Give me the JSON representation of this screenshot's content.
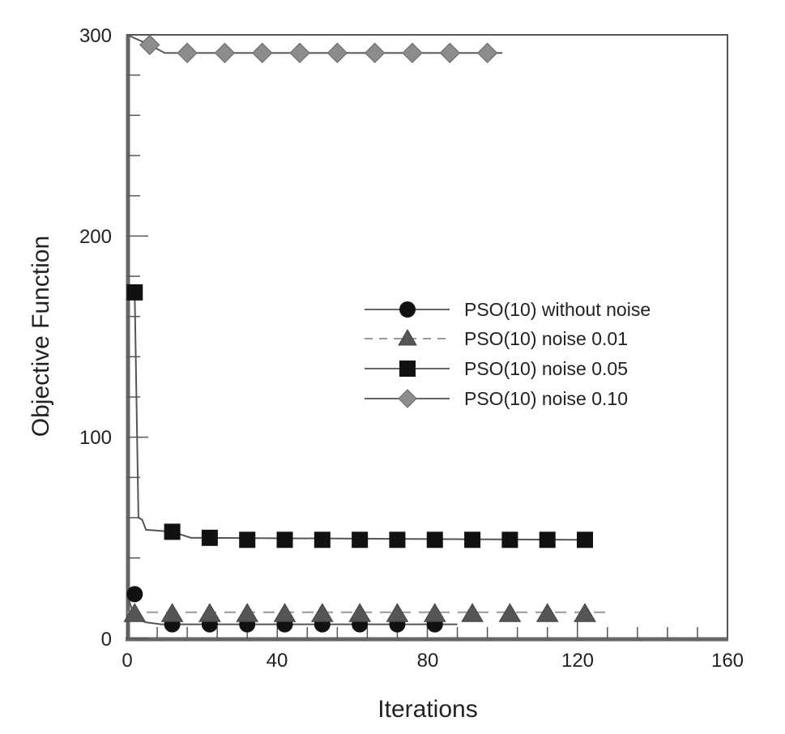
{
  "chart_data": {
    "type": "line",
    "title": "",
    "xlabel": "Iterations",
    "ylabel": "Objective Function",
    "xlim": [
      0,
      160
    ],
    "ylim": [
      0,
      300
    ],
    "xticks": [
      0,
      40,
      80,
      120,
      160
    ],
    "yticks": [
      0,
      100,
      200,
      300
    ],
    "x_minor_step": 8,
    "y_minor_step": 20,
    "grid": false,
    "legend_position": "center-right",
    "series": [
      {
        "name": "PSO(10) without noise",
        "marker": "circle",
        "line": "solid",
        "marker_color": "#111111",
        "points": [
          [
            2,
            22
          ],
          [
            12,
            7
          ],
          [
            22,
            7
          ],
          [
            32,
            7
          ],
          [
            42,
            7
          ],
          [
            52,
            7
          ],
          [
            62,
            7
          ],
          [
            72,
            7
          ],
          [
            82,
            7
          ]
        ],
        "line_points": [
          [
            0,
            22
          ],
          [
            2,
            10
          ],
          [
            5,
            8
          ],
          [
            9,
            7
          ],
          [
            88,
            7
          ]
        ]
      },
      {
        "name": "PSO(10) noise 0.01",
        "marker": "triangle",
        "line": "dashed",
        "marker_color": "#555555",
        "points": [
          [
            2,
            12
          ],
          [
            12,
            12
          ],
          [
            22,
            12
          ],
          [
            32,
            12
          ],
          [
            42,
            12
          ],
          [
            52,
            12
          ],
          [
            62,
            12
          ],
          [
            72,
            12
          ],
          [
            82,
            12
          ],
          [
            92,
            12
          ],
          [
            102,
            12
          ],
          [
            112,
            12
          ],
          [
            122,
            12
          ]
        ],
        "line_points": [
          [
            0,
            13
          ],
          [
            128,
            13
          ]
        ]
      },
      {
        "name": "PSO(10) noise 0.05",
        "marker": "square",
        "line": "solid",
        "marker_color": "#111111",
        "points": [
          [
            2,
            172
          ],
          [
            12,
            53
          ],
          [
            22,
            50
          ],
          [
            32,
            49
          ],
          [
            42,
            49
          ],
          [
            52,
            49
          ],
          [
            62,
            49
          ],
          [
            72,
            49
          ],
          [
            82,
            49
          ],
          [
            92,
            49
          ],
          [
            102,
            49
          ],
          [
            112,
            49
          ],
          [
            122,
            49
          ]
        ],
        "line_points": [
          [
            2,
            172
          ],
          [
            3,
            60
          ],
          [
            4,
            59
          ],
          [
            5,
            54
          ],
          [
            12,
            53
          ],
          [
            17,
            50
          ],
          [
            124,
            49
          ]
        ]
      },
      {
        "name": "PSO(10) noise 0.10",
        "marker": "diamond",
        "line": "solid",
        "marker_color": "#8c8c8c",
        "points": [
          [
            6,
            295
          ],
          [
            16,
            291
          ],
          [
            26,
            291
          ],
          [
            36,
            291
          ],
          [
            46,
            291
          ],
          [
            56,
            291
          ],
          [
            66,
            291
          ],
          [
            76,
            291
          ],
          [
            86,
            291
          ],
          [
            96,
            291
          ]
        ],
        "line_points": [
          [
            0,
            300
          ],
          [
            6,
            295
          ],
          [
            10,
            291
          ],
          [
            100,
            291
          ]
        ]
      }
    ]
  },
  "axes": {
    "x_title": "Iterations",
    "y_title": "Objective Function",
    "x_ticks": [
      "0",
      "40",
      "80",
      "120",
      "160"
    ],
    "y_ticks": [
      "0",
      "100",
      "200",
      "300"
    ]
  },
  "legend": {
    "items": [
      {
        "label": "PSO(10) without noise"
      },
      {
        "label": "PSO(10) noise 0.01"
      },
      {
        "label": "PSO(10) noise 0.05"
      },
      {
        "label": "PSO(10) noise 0.10"
      }
    ]
  }
}
